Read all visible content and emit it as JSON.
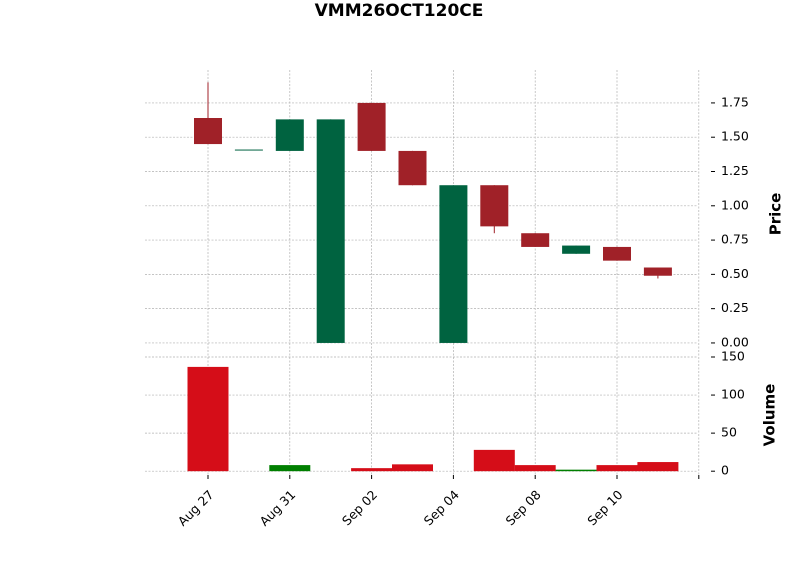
{
  "chart_data": {
    "type": "candlestick",
    "title": "VMM26OCT120CE",
    "categories": [
      "Aug 27",
      null,
      "Aug 31",
      null,
      "Sep 02",
      null,
      "Sep 04",
      null,
      "Sep 08",
      null,
      "Sep 10",
      null
    ],
    "open": [
      1.64,
      1.41,
      1.4,
      0,
      1.75,
      1.4,
      0,
      1.15,
      0.8,
      0.65,
      0.7,
      0.55
    ],
    "high": [
      1.9,
      1.41,
      1.63,
      1.63,
      1.75,
      1.4,
      1.15,
      1.15,
      0.8,
      0.71,
      0.7,
      0.55
    ],
    "low": [
      1.45,
      1.41,
      1.4,
      0,
      1.4,
      1.15,
      0,
      0.8,
      0.7,
      0.65,
      0.6,
      0.47
    ],
    "close": [
      1.45,
      1.41,
      1.63,
      1.63,
      1.4,
      1.15,
      1.15,
      0.85,
      0.7,
      0.71,
      0.6,
      0.49
    ],
    "up_color": "#006340",
    "down_color": "#a02128",
    "ylabel": "Price",
    "ylim": [
      -0.066,
      1.99
    ],
    "yticks": [
      {
        "value": 0,
        "label": "0.00"
      },
      {
        "value": 0.25,
        "label": "0.25"
      },
      {
        "value": 0.5,
        "label": "0.50"
      },
      {
        "value": 0.75,
        "label": "0.75"
      },
      {
        "value": 1,
        "label": "1.00"
      },
      {
        "value": 1.25,
        "label": "1.25"
      },
      {
        "value": 1.5,
        "label": "1.50"
      },
      {
        "value": 1.75,
        "label": "1.75"
      }
    ],
    "volume": [
      137,
      0,
      8,
      0,
      4,
      9,
      0,
      28,
      8,
      2,
      8,
      12
    ],
    "volume_up_color": "#007f00",
    "volume_down_color": "#d50d18",
    "y2label": "Volume",
    "y2lim": [
      -5,
      150
    ],
    "y2ticks": [
      0,
      50,
      100,
      150
    ],
    "grid": true
  }
}
